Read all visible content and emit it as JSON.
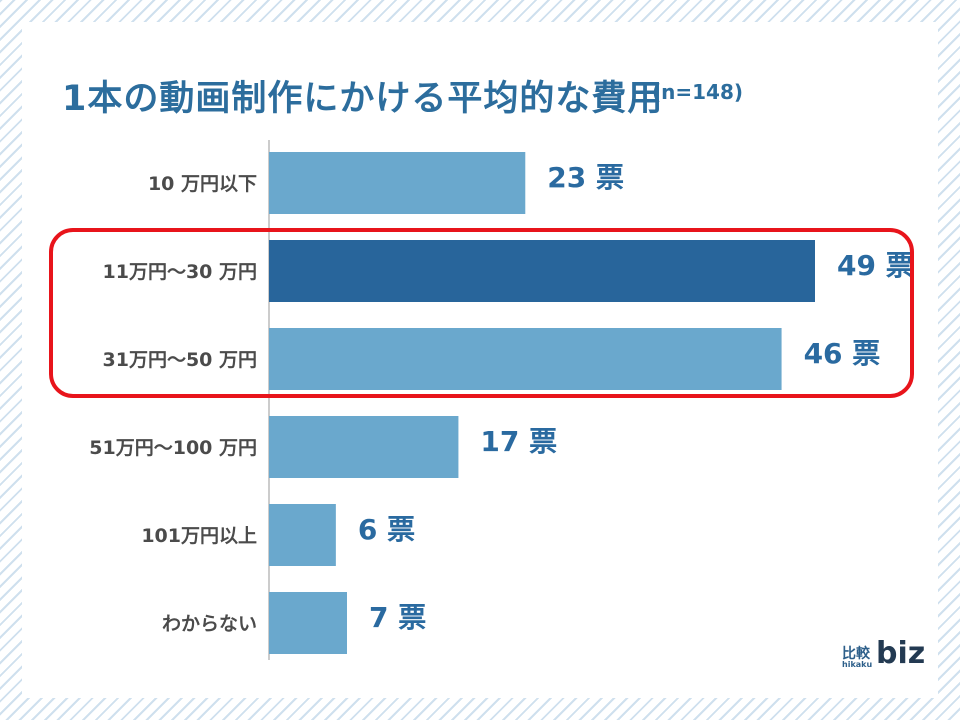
{
  "chart_data": {
    "type": "bar",
    "orientation": "horizontal",
    "title": "1本の動画制作にかける平均的な費用",
    "subtitle": "(n=148)",
    "categories": [
      "10 万円以下",
      "11万円〜30 万円",
      "31万円〜50 万円",
      "51万円〜100 万円",
      "101万円以上",
      "わからない"
    ],
    "values": [
      23,
      49,
      46,
      17,
      6,
      7
    ],
    "value_labels": [
      "23 票",
      "49 票",
      "46 票",
      "17 票",
      "6 票",
      "7 票"
    ],
    "highlighted": [
      false,
      true,
      false,
      false,
      false,
      false
    ],
    "highlight_group": [
      "11万円〜30 万円",
      "31万円〜50 万円"
    ],
    "xlim": [
      0,
      49
    ],
    "grid": false,
    "colors": {
      "bar": "#6aa8cd",
      "highlight": "#28659b",
      "value_text": "#2a6aa0",
      "frame": "#e8141b"
    }
  },
  "logo": {
    "top": "比較",
    "small": "hikaku",
    "main": "biz"
  }
}
